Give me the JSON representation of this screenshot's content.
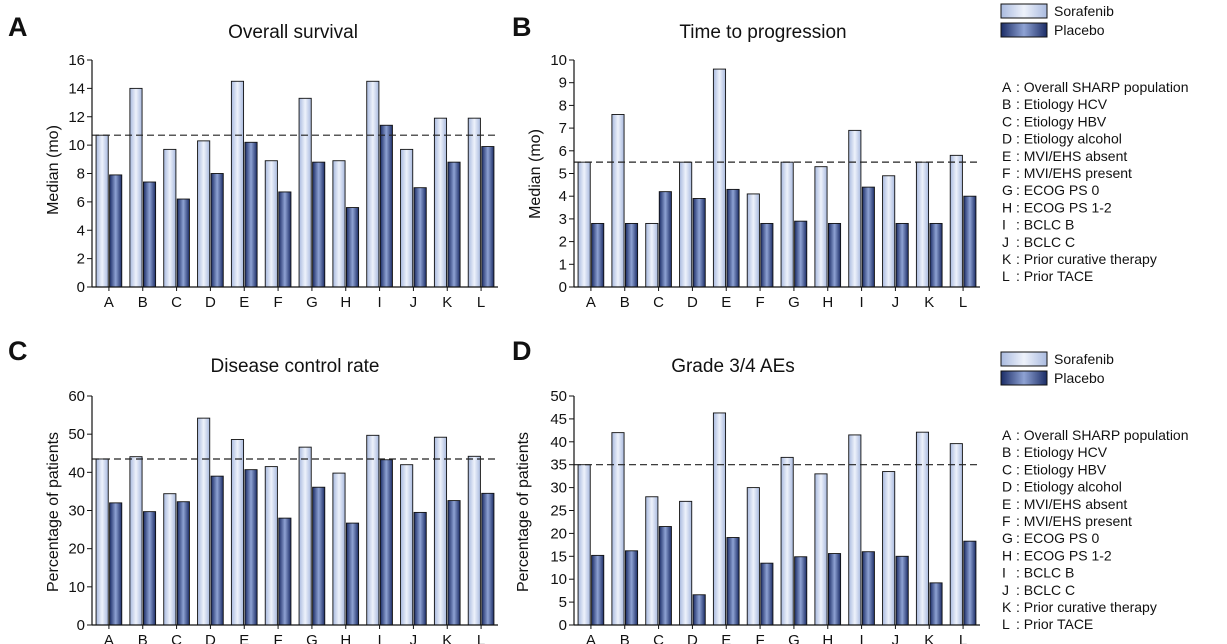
{
  "colors": {
    "sorafenib_light": "#eef2fb",
    "sorafenib_dark": "#a9badf",
    "placebo_light": "#8ea2d3",
    "placebo_dark": "#1b2c66",
    "axis": "#111111",
    "reference_line": "#222222"
  },
  "legends": [
    {
      "series": [
        "Sorafenib",
        "Placebo"
      ],
      "key": [
        {
          "letter": "A",
          "text": ": Overall SHARP population"
        },
        {
          "letter": "B",
          "text": ": Etiology HCV"
        },
        {
          "letter": "C",
          "text": ": Etiology HBV"
        },
        {
          "letter": "D",
          "text": ": Etiology alcohol"
        },
        {
          "letter": "E",
          "text": ": MVI/EHS absent"
        },
        {
          "letter": "F",
          "text": ": MVI/EHS present"
        },
        {
          "letter": "G",
          "text": ": ECOG PS 0"
        },
        {
          "letter": "H",
          "text": ": ECOG PS 1-2"
        },
        {
          "letter": "I",
          "text": ": BCLC B"
        },
        {
          "letter": "J",
          "text": ": BCLC C"
        },
        {
          "letter": "K",
          "text": ": Prior curative therapy"
        },
        {
          "letter": "L",
          "text": ": Prior TACE"
        }
      ]
    },
    {
      "series": [
        "Sorafenib",
        "Placebo"
      ],
      "key": [
        {
          "letter": "A",
          "text": ": Overall SHARP population"
        },
        {
          "letter": "B",
          "text": ": Etiology HCV"
        },
        {
          "letter": "C",
          "text": ": Etiology HBV"
        },
        {
          "letter": "D",
          "text": ": Etiology alcohol"
        },
        {
          "letter": "E",
          "text": ": MVI/EHS absent"
        },
        {
          "letter": "F",
          "text": ": MVI/EHS present"
        },
        {
          "letter": "G",
          "text": ": ECOG PS 0"
        },
        {
          "letter": "H",
          "text": ": ECOG PS 1-2"
        },
        {
          "letter": "I",
          "text": ": BCLC B"
        },
        {
          "letter": "J",
          "text": ": BCLC C"
        },
        {
          "letter": "K",
          "text": ": Prior curative therapy"
        },
        {
          "letter": "L",
          "text": ": Prior TACE"
        }
      ]
    }
  ],
  "chart_data": [
    {
      "panel": "A",
      "type": "bar",
      "title": "Overall survival",
      "ylabel": "Median (mo)",
      "xlabel": "",
      "categories": [
        "A",
        "B",
        "C",
        "D",
        "E",
        "F",
        "G",
        "H",
        "I",
        "J",
        "K",
        "L"
      ],
      "ylim": [
        0,
        16
      ],
      "yticks": [
        0,
        2,
        4,
        6,
        8,
        10,
        12,
        14,
        16
      ],
      "reference_line": 10.7,
      "series": [
        {
          "name": "Sorafenib",
          "values": [
            10.7,
            14.0,
            9.7,
            10.3,
            14.5,
            8.9,
            13.3,
            8.9,
            14.5,
            9.7,
            11.9,
            11.9
          ]
        },
        {
          "name": "Placebo",
          "values": [
            7.9,
            7.4,
            6.2,
            8.0,
            10.2,
            6.7,
            8.8,
            5.6,
            11.4,
            7.0,
            8.8,
            9.9
          ]
        }
      ]
    },
    {
      "panel": "B",
      "type": "bar",
      "title": "Time to progression",
      "ylabel": "Median (mo)",
      "xlabel": "",
      "categories": [
        "A",
        "B",
        "C",
        "D",
        "E",
        "F",
        "G",
        "H",
        "I",
        "J",
        "K",
        "L"
      ],
      "ylim": [
        0,
        10
      ],
      "yticks": [
        0,
        1,
        2,
        3,
        4,
        5,
        6,
        7,
        8,
        9,
        10
      ],
      "reference_line": 5.5,
      "series": [
        {
          "name": "Sorafenib",
          "values": [
            5.5,
            7.6,
            2.8,
            5.5,
            9.6,
            4.1,
            5.5,
            5.3,
            6.9,
            4.9,
            5.5,
            5.8
          ]
        },
        {
          "name": "Placebo",
          "values": [
            2.8,
            2.8,
            4.2,
            3.9,
            4.3,
            2.8,
            2.9,
            2.8,
            4.4,
            2.8,
            2.8,
            4.0
          ]
        }
      ]
    },
    {
      "panel": "C",
      "type": "bar",
      "title": "Disease control rate",
      "ylabel": "Percentage of patients",
      "xlabel": "",
      "categories": [
        "A",
        "B",
        "C",
        "D",
        "E",
        "F",
        "G",
        "H",
        "I",
        "J",
        "K",
        "L"
      ],
      "ylim": [
        0,
        60
      ],
      "yticks": [
        0,
        10,
        20,
        30,
        40,
        50,
        60
      ],
      "reference_line": 43.5,
      "series": [
        {
          "name": "Sorafenib",
          "values": [
            43.5,
            44.1,
            34.4,
            54.2,
            48.6,
            41.5,
            46.6,
            39.8,
            49.7,
            42.0,
            49.2,
            44.2
          ]
        },
        {
          "name": "Placebo",
          "values": [
            32.0,
            29.7,
            32.3,
            39.0,
            40.7,
            28.0,
            36.1,
            26.7,
            43.3,
            29.5,
            32.6,
            34.5
          ]
        }
      ]
    },
    {
      "panel": "D",
      "type": "bar",
      "title": "Grade 3/4 AEs",
      "ylabel": "Percentage of patients",
      "xlabel": "",
      "categories": [
        "A",
        "B",
        "C",
        "D",
        "E",
        "F",
        "G",
        "H",
        "I",
        "J",
        "K",
        "L"
      ],
      "ylim": [
        0,
        50
      ],
      "yticks": [
        0,
        5,
        10,
        15,
        20,
        25,
        30,
        35,
        40,
        45,
        50
      ],
      "reference_line": 35,
      "series": [
        {
          "name": "Sorafenib",
          "values": [
            35.0,
            42.0,
            28.0,
            27.0,
            46.3,
            30.0,
            36.6,
            33.0,
            41.5,
            33.5,
            42.1,
            39.6
          ]
        },
        {
          "name": "Placebo",
          "values": [
            15.2,
            16.2,
            21.5,
            6.6,
            19.1,
            13.5,
            14.9,
            15.6,
            16.0,
            15.0,
            9.2,
            18.3
          ]
        }
      ]
    }
  ]
}
